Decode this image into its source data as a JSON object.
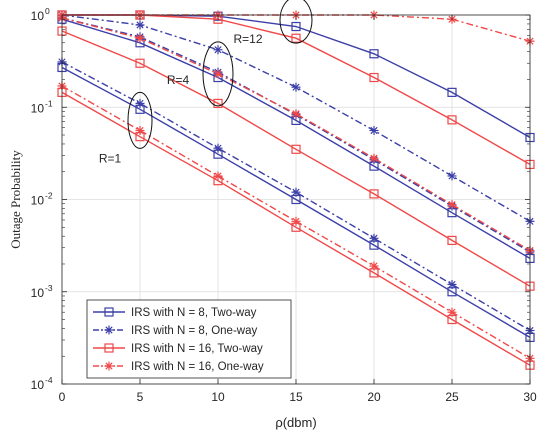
{
  "chart_data": {
    "type": "line",
    "xlabel": "ρ(dbm)",
    "ylabel": "Outage Probability",
    "y_scale": "log",
    "xlim": [
      0,
      30
    ],
    "ylim": [
      0.0001,
      1
    ],
    "x_ticks": [
      0,
      5,
      10,
      15,
      20,
      25,
      30
    ],
    "x_tick_labels": [
      "0",
      "5",
      "10",
      "15",
      "20",
      "25",
      "30"
    ],
    "y_ticks": [
      {
        "value": 0.0001,
        "base": "10",
        "exp": "-4"
      },
      {
        "value": 0.001,
        "base": "10",
        "exp": "-3"
      },
      {
        "value": 0.01,
        "base": "10",
        "exp": "-2"
      },
      {
        "value": 0.1,
        "base": "10",
        "exp": "-1"
      },
      {
        "value": 1,
        "base": "10",
        "exp": "0"
      }
    ],
    "grid": true,
    "legend_position": "bottom-left",
    "x": [
      0,
      5,
      10,
      15,
      20,
      25,
      30
    ],
    "series": [
      {
        "name": "IRS with N = 8, Two-way",
        "color": "#3b3fa8",
        "dash": "solid",
        "marker": "square",
        "group": "R=1",
        "values": [
          0.27,
          0.095,
          0.031,
          0.01,
          0.0032,
          0.001,
          0.00032
        ]
      },
      {
        "name": "IRS with N = 8, One-way",
        "color": "#3b3fa8",
        "dash": "dashdot",
        "marker": "star",
        "group": "R=1",
        "values": [
          0.31,
          0.11,
          0.036,
          0.012,
          0.0038,
          0.0012,
          0.00038
        ]
      },
      {
        "name": "IRS with N = 16, Two-way",
        "color": "#f04848",
        "dash": "solid",
        "marker": "square",
        "group": "R=1",
        "values": [
          0.145,
          0.048,
          0.016,
          0.005,
          0.0016,
          0.0005,
          0.00016
        ]
      },
      {
        "name": "IRS with N = 16, One-way",
        "color": "#f04848",
        "dash": "dashdot",
        "marker": "star",
        "group": "R=1",
        "values": [
          0.17,
          0.056,
          0.018,
          0.0058,
          0.0019,
          0.0006,
          0.00019
        ]
      },
      {
        "color": "#3b3fa8",
        "dash": "solid",
        "marker": "square",
        "group": "R=4",
        "values": [
          0.9,
          0.5,
          0.21,
          0.072,
          0.023,
          0.0072,
          0.0023
        ]
      },
      {
        "color": "#3b3fa8",
        "dash": "dashdot",
        "marker": "star",
        "group": "R=4",
        "values": [
          0.93,
          0.58,
          0.24,
          0.083,
          0.027,
          0.0085,
          0.0027
        ]
      },
      {
        "color": "#f04848",
        "dash": "solid",
        "marker": "square",
        "group": "R=4",
        "values": [
          0.67,
          0.3,
          0.11,
          0.035,
          0.0115,
          0.0036,
          0.00115
        ]
      },
      {
        "color": "#f04848",
        "dash": "dashdot",
        "marker": "star",
        "group": "R=4",
        "values": [
          0.93,
          0.56,
          0.23,
          0.085,
          0.028,
          0.0088,
          0.0028
        ]
      },
      {
        "color": "#3b3fa8",
        "dash": "solid",
        "marker": "square",
        "group": "R=12",
        "values": [
          1.0,
          1.0,
          0.97,
          0.75,
          0.38,
          0.145,
          0.047
        ]
      },
      {
        "color": "#3b3fa8",
        "dash": "dashdot",
        "marker": "star",
        "group": "R=12",
        "values": [
          1.0,
          0.78,
          0.42,
          0.165,
          0.056,
          0.018,
          0.0058
        ]
      },
      {
        "color": "#f04848",
        "dash": "solid",
        "marker": "square",
        "group": "R=12",
        "values": [
          1.0,
          1.0,
          0.9,
          0.56,
          0.21,
          0.073,
          0.024
        ]
      },
      {
        "color": "#f04848",
        "dash": "dashdot",
        "marker": "star",
        "group": "R=12",
        "values": [
          1.0,
          1.0,
          1.0,
          1.0,
          1.0,
          0.9,
          0.52
        ]
      }
    ],
    "annotations": [
      {
        "text": "R=1",
        "ellipse_center": [
          5,
          0.072
        ]
      },
      {
        "text": "R=4",
        "ellipse_center": [
          10,
          0.23
        ]
      },
      {
        "text": "R=12",
        "ellipse_center": [
          15,
          0.88
        ]
      }
    ]
  }
}
